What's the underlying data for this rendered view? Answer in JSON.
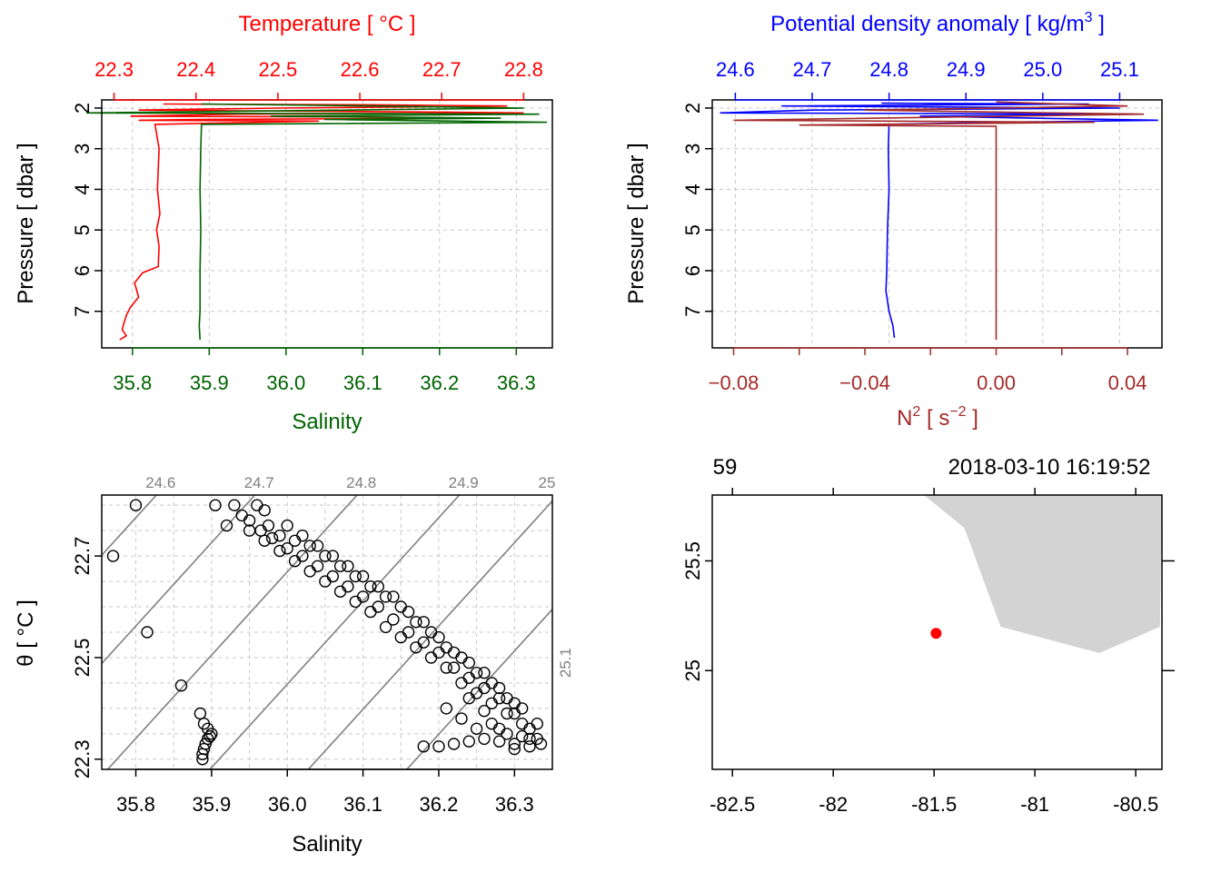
{
  "colors": {
    "temperature": "#ff0000",
    "salinity": "#006400",
    "density": "#0000ff",
    "n2": "#a52a2a",
    "axis": "#000000",
    "grid": "#c8c8c8",
    "isopycnal": "#808080",
    "land": "#d3d3d3",
    "station": "#ff0000"
  },
  "chart_data": [
    {
      "id": "ts_profile",
      "type": "line",
      "title_top": "Temperature [ °C ]",
      "xlabel_bottom": "Salinity",
      "ylabel": "Pressure [ dbar ]",
      "top_axis": {
        "variable": "Temperature",
        "ticks": [
          "22.3",
          "22.4",
          "22.5",
          "22.6",
          "22.7",
          "22.8"
        ],
        "range": [
          22.285,
          22.835
        ]
      },
      "bottom_axis": {
        "variable": "Salinity",
        "ticks": [
          "35.8",
          "35.9",
          "36.0",
          "36.1",
          "36.2",
          "36.3"
        ],
        "range": [
          35.76,
          36.347
        ]
      },
      "y_axis": {
        "ticks": [
          "2",
          "3",
          "4",
          "5",
          "6",
          "7"
        ],
        "range": [
          7.9,
          1.8
        ],
        "reversed": true
      },
      "grid": true,
      "series": [
        {
          "name": "Temperature",
          "axis": "top",
          "values": [
            [
              22.36,
              1.9
            ],
            [
              22.62,
              1.92
            ],
            [
              22.78,
              1.95
            ],
            [
              22.5,
              2.0
            ],
            [
              22.33,
              2.05
            ],
            [
              22.7,
              2.1
            ],
            [
              22.8,
              2.12
            ],
            [
              22.45,
              2.15
            ],
            [
              22.32,
              2.2
            ],
            [
              22.6,
              2.22
            ],
            [
              22.75,
              2.25
            ],
            [
              22.4,
              2.28
            ],
            [
              22.33,
              2.3
            ],
            [
              22.55,
              2.32
            ],
            [
              22.35,
              2.4
            ],
            [
              22.355,
              3.0
            ],
            [
              22.353,
              4.0
            ],
            [
              22.356,
              4.6
            ],
            [
              22.352,
              5.0
            ],
            [
              22.355,
              5.4
            ],
            [
              22.354,
              5.9
            ],
            [
              22.335,
              6.05
            ],
            [
              22.325,
              6.3
            ],
            [
              22.33,
              6.65
            ],
            [
              22.32,
              6.9
            ],
            [
              22.315,
              7.1
            ],
            [
              22.312,
              7.3
            ],
            [
              22.31,
              7.45
            ],
            [
              22.315,
              7.6
            ],
            [
              22.307,
              7.7
            ]
          ]
        },
        {
          "name": "Salinity",
          "axis": "bottom",
          "values": [
            [
              35.89,
              1.9
            ],
            [
              36.12,
              1.95
            ],
            [
              36.31,
              2.0
            ],
            [
              35.74,
              2.12
            ],
            [
              36.33,
              2.15
            ],
            [
              35.98,
              2.2
            ],
            [
              36.28,
              2.25
            ],
            [
              36.05,
              2.28
            ],
            [
              36.34,
              2.35
            ],
            [
              35.89,
              2.4
            ],
            [
              35.889,
              3.0
            ],
            [
              35.888,
              4.0
            ],
            [
              35.889,
              5.0
            ],
            [
              35.888,
              6.0
            ],
            [
              35.888,
              7.0
            ],
            [
              35.887,
              7.35
            ],
            [
              35.888,
              7.7
            ]
          ]
        }
      ]
    },
    {
      "id": "density_n2_profile",
      "type": "line",
      "title_top": "Potential density anomaly [ kg/m",
      "title_top_sup": "3",
      "title_top_end": " ]",
      "xlabel_bottom": "N",
      "xlabel_bottom_sup": "2",
      "xlabel_bottom_mid": " [ s",
      "xlabel_bottom_sup2": "−2",
      "xlabel_bottom_end": " ]",
      "ylabel": "Pressure [ dbar ]",
      "top_axis": {
        "variable": "Potential density anomaly",
        "ticks": [
          "24.6",
          "24.7",
          "24.8",
          "24.9",
          "25.0",
          "25.1"
        ],
        "range": [
          24.57,
          25.155
        ]
      },
      "bottom_axis": {
        "variable": "N2",
        "ticks": [
          "−0.08",
          "−0.04",
          "0.00",
          "0.04"
        ],
        "range": [
          -0.0865,
          0.0505
        ]
      },
      "y_axis": {
        "ticks": [
          "2",
          "3",
          "4",
          "5",
          "6",
          "7"
        ],
        "range": [
          7.9,
          1.8
        ],
        "reversed": true
      },
      "grid": true,
      "series": [
        {
          "name": "Potential density anomaly",
          "axis": "top",
          "values": [
            [
              24.79,
              1.88
            ],
            [
              25.06,
              1.9
            ],
            [
              24.66,
              1.95
            ],
            [
              25.1,
              2.0
            ],
            [
              24.7,
              2.05
            ],
            [
              24.58,
              2.12
            ],
            [
              25.12,
              2.15
            ],
            [
              24.84,
              2.2
            ],
            [
              25.15,
              2.3
            ],
            [
              24.95,
              2.35
            ],
            [
              24.8,
              2.4
            ],
            [
              24.799,
              3.0
            ],
            [
              24.8,
              4.0
            ],
            [
              24.798,
              5.0
            ],
            [
              24.797,
              6.0
            ],
            [
              24.796,
              6.5
            ],
            [
              24.8,
              7.0
            ],
            [
              24.805,
              7.35
            ],
            [
              24.807,
              7.65
            ]
          ]
        },
        {
          "name": "N2",
          "axis": "bottom",
          "values": [
            [
              0.0,
              1.85
            ],
            [
              0.04,
              1.95
            ],
            [
              -0.04,
              2.05
            ],
            [
              0.045,
              2.15
            ],
            [
              -0.08,
              2.3
            ],
            [
              0.03,
              2.35
            ],
            [
              -0.06,
              2.42
            ],
            [
              0.0,
              2.45
            ],
            [
              0.0,
              3.0
            ],
            [
              0.0,
              4.0
            ],
            [
              0.0,
              5.0
            ],
            [
              0.0,
              6.0
            ],
            [
              0.0,
              7.0
            ],
            [
              0.0,
              7.7
            ]
          ]
        }
      ]
    },
    {
      "id": "ts_diagram",
      "type": "scatter",
      "xlabel": "Salinity",
      "ylabel": "θ [ °C ]",
      "x_axis": {
        "ticks": [
          "35.8",
          "35.9",
          "36.0",
          "36.1",
          "36.2",
          "36.3"
        ],
        "range": [
          35.755,
          36.35
        ]
      },
      "y_axis": {
        "ticks": [
          "22.3",
          "22.5",
          "22.7"
        ],
        "range": [
          22.28,
          22.82
        ]
      },
      "grid": true,
      "isopycnals": [
        "24.6",
        "24.7",
        "24.8",
        "24.9",
        "25",
        "25.1"
      ],
      "points": [
        [
          35.77,
          22.7
        ],
        [
          35.8,
          22.8
        ],
        [
          35.815,
          22.55
        ],
        [
          35.86,
          22.445
        ],
        [
          35.885,
          22.39
        ],
        [
          35.89,
          22.37
        ],
        [
          35.895,
          22.36
        ],
        [
          35.9,
          22.35
        ],
        [
          35.888,
          22.3
        ],
        [
          35.888,
          22.31
        ],
        [
          35.89,
          22.32
        ],
        [
          35.892,
          22.33
        ],
        [
          35.895,
          22.34
        ],
        [
          35.898,
          22.345
        ],
        [
          35.905,
          22.8
        ],
        [
          35.93,
          22.8
        ],
        [
          35.94,
          22.78
        ],
        [
          35.92,
          22.76
        ],
        [
          35.95,
          22.75
        ],
        [
          35.97,
          22.73
        ],
        [
          35.99,
          22.71
        ],
        [
          36.01,
          22.69
        ],
        [
          36.03,
          22.67
        ],
        [
          36.05,
          22.65
        ],
        [
          36.07,
          22.63
        ],
        [
          36.09,
          22.61
        ],
        [
          36.11,
          22.59
        ],
        [
          36.13,
          22.56
        ],
        [
          36.15,
          22.54
        ],
        [
          36.17,
          22.52
        ],
        [
          36.19,
          22.5
        ],
        [
          36.21,
          22.48
        ],
        [
          36.23,
          22.45
        ],
        [
          36.25,
          22.43
        ],
        [
          36.27,
          22.41
        ],
        [
          36.29,
          22.39
        ],
        [
          36.31,
          22.37
        ],
        [
          36.33,
          22.34
        ],
        [
          35.96,
          22.8
        ],
        [
          35.97,
          22.79
        ],
        [
          35.975,
          22.76
        ],
        [
          35.99,
          22.74
        ],
        [
          36.01,
          22.73
        ],
        [
          36.03,
          22.72
        ],
        [
          36.05,
          22.7
        ],
        [
          36.07,
          22.68
        ],
        [
          36.09,
          22.66
        ],
        [
          36.11,
          22.64
        ],
        [
          36.13,
          22.62
        ],
        [
          36.15,
          22.6
        ],
        [
          36.17,
          22.57
        ],
        [
          36.19,
          22.55
        ],
        [
          36.21,
          22.52
        ],
        [
          36.23,
          22.5
        ],
        [
          36.25,
          22.47
        ],
        [
          36.27,
          22.45
        ],
        [
          36.29,
          22.42
        ],
        [
          36.31,
          22.4
        ],
        [
          36.33,
          22.37
        ],
        [
          35.95,
          22.77
        ],
        [
          35.965,
          22.75
        ],
        [
          35.98,
          22.735
        ],
        [
          36.0,
          22.715
        ],
        [
          36.02,
          22.7
        ],
        [
          36.04,
          22.68
        ],
        [
          36.06,
          22.66
        ],
        [
          36.08,
          22.64
        ],
        [
          36.1,
          22.62
        ],
        [
          36.12,
          22.6
        ],
        [
          36.14,
          22.575
        ],
        [
          36.16,
          22.55
        ],
        [
          36.18,
          22.53
        ],
        [
          36.2,
          22.51
        ],
        [
          36.22,
          22.48
        ],
        [
          36.24,
          22.46
        ],
        [
          36.26,
          22.44
        ],
        [
          36.28,
          22.42
        ],
        [
          36.3,
          22.39
        ],
        [
          36.32,
          22.36
        ],
        [
          36.0,
          22.76
        ],
        [
          36.02,
          22.74
        ],
        [
          36.04,
          22.72
        ],
        [
          36.06,
          22.7
        ],
        [
          36.08,
          22.68
        ],
        [
          36.1,
          22.66
        ],
        [
          36.12,
          22.64
        ],
        [
          36.14,
          22.62
        ],
        [
          36.16,
          22.59
        ],
        [
          36.18,
          22.57
        ],
        [
          36.2,
          22.54
        ],
        [
          36.22,
          22.51
        ],
        [
          36.24,
          22.49
        ],
        [
          36.26,
          22.47
        ],
        [
          36.28,
          22.44
        ],
        [
          36.3,
          22.41
        ],
        [
          36.18,
          22.325
        ],
        [
          36.2,
          22.325
        ],
        [
          36.22,
          22.33
        ],
        [
          36.24,
          22.335
        ],
        [
          36.26,
          22.34
        ],
        [
          36.28,
          22.335
        ],
        [
          36.3,
          22.33
        ],
        [
          36.32,
          22.325
        ],
        [
          36.335,
          22.33
        ],
        [
          36.25,
          22.36
        ],
        [
          36.27,
          22.37
        ],
        [
          36.29,
          22.35
        ],
        [
          36.23,
          22.38
        ],
        [
          36.21,
          22.4
        ],
        [
          36.24,
          22.42
        ],
        [
          36.26,
          22.395
        ],
        [
          36.28,
          22.36
        ],
        [
          36.31,
          22.345
        ],
        [
          36.3,
          22.32
        ],
        [
          36.32,
          22.34
        ]
      ]
    },
    {
      "id": "station_map",
      "type": "scatter",
      "x_axis": {
        "ticks": [
          "-82.5",
          "-82",
          "-81.5",
          "-81",
          "-80.5"
        ],
        "range": [
          -82.6,
          -80.37
        ]
      },
      "y_axis": {
        "ticks": [
          "25",
          "25.5"
        ],
        "range": [
          24.55,
          25.8
        ]
      },
      "top_labels": {
        "left": "59",
        "right": "2018-03-10 16:19:52"
      },
      "station": {
        "longitude": -81.49,
        "latitude": 25.17
      },
      "land_polygon": [
        [
          -81.55,
          25.8
        ],
        [
          -81.35,
          25.65
        ],
        [
          -81.17,
          25.2
        ],
        [
          -80.68,
          25.08
        ],
        [
          -80.38,
          25.2
        ],
        [
          -80.37,
          25.8
        ]
      ]
    }
  ]
}
